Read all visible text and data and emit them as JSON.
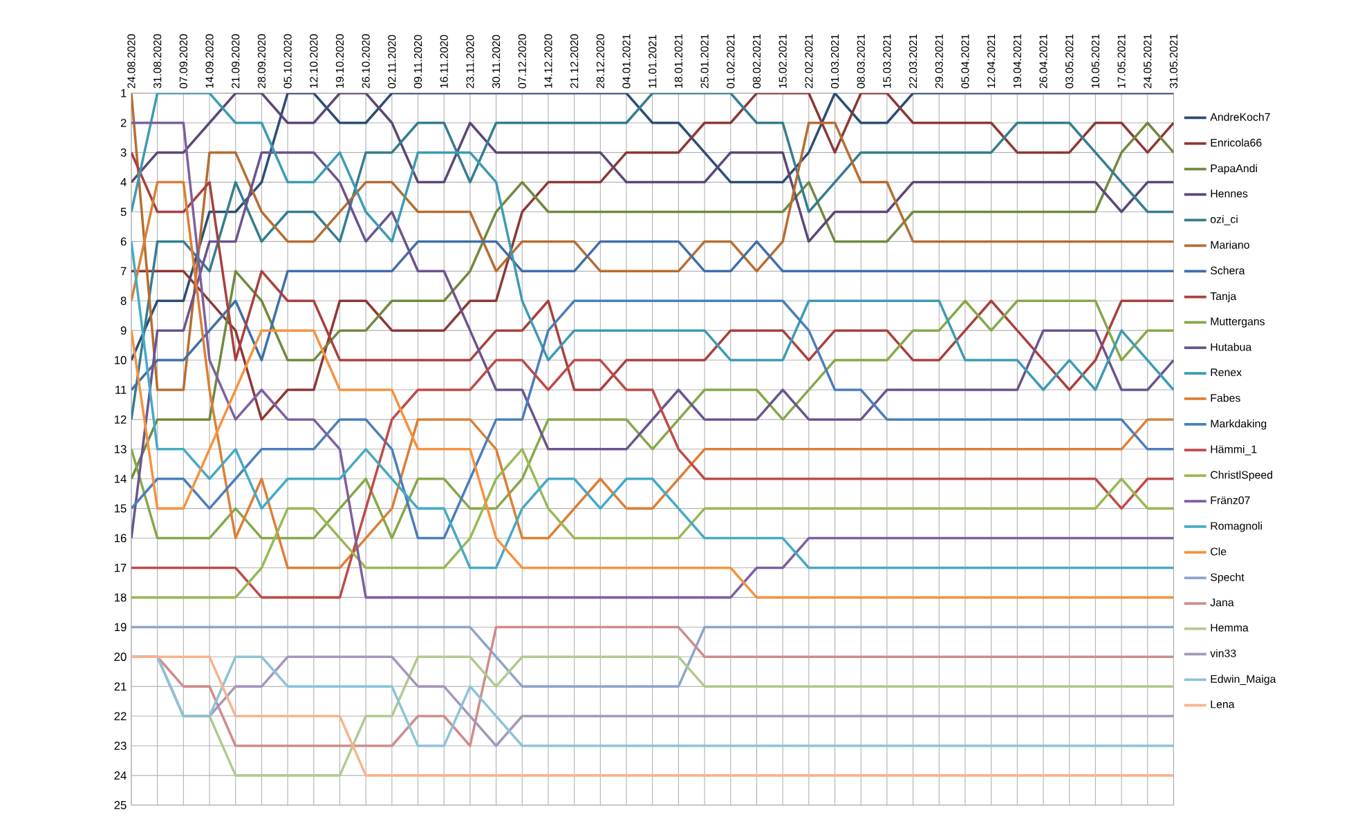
{
  "chart_data": {
    "type": "line",
    "categories": [
      "24.08.2020",
      "31.08.2020",
      "07.09.2020",
      "14.09.2020",
      "21.09.2020",
      "28.09.2020",
      "05.10.2020",
      "12.10.2020",
      "19.10.2020",
      "26.10.2020",
      "02.11.2020",
      "09.11.2020",
      "16.11.2020",
      "23.11.2020",
      "30.11.2020",
      "07.12.2020",
      "14.12.2020",
      "21.12.2020",
      "28.12.2020",
      "04.01.2021",
      "11.01.2021",
      "18.01.2021",
      "25.01.2021",
      "01.02.2021",
      "08.02.2021",
      "15.02.2021",
      "22.02.2021",
      "01.03.2021",
      "08.03.2021",
      "15.03.2021",
      "22.03.2021",
      "29.03.2021",
      "05.04.2021",
      "12.04.2021",
      "19.04.2021",
      "26.04.2021",
      "03.05.2021",
      "10.05.2021",
      "17.05.2021",
      "24.05.2021",
      "31.05.2021"
    ],
    "ylim": [
      25,
      1
    ],
    "yticks": [
      1,
      2,
      3,
      4,
      5,
      6,
      7,
      8,
      9,
      10,
      11,
      12,
      13,
      14,
      15,
      16,
      17,
      18,
      19,
      20,
      21,
      22,
      23,
      24,
      25
    ],
    "grid": true,
    "legend": "right",
    "marker": "none",
    "line_style": "solid",
    "series": [
      {
        "name": "AndreKoch7",
        "color": "#2c4d75",
        "values": [
          10,
          8,
          8,
          5,
          5,
          4,
          1,
          1,
          2,
          2,
          1,
          1,
          1,
          1,
          1,
          1,
          1,
          1,
          1,
          1,
          2,
          2,
          3,
          4,
          4,
          4,
          3,
          1,
          2,
          2,
          1,
          1,
          1,
          1,
          1,
          1,
          1,
          1,
          1,
          1,
          1
        ]
      },
      {
        "name": "Enricola66",
        "color": "#8c3836",
        "values": [
          7,
          7,
          7,
          8,
          9,
          12,
          11,
          11,
          8,
          8,
          9,
          9,
          9,
          8,
          8,
          5,
          4,
          4,
          4,
          3,
          3,
          3,
          2,
          2,
          1,
          1,
          1,
          3,
          1,
          1,
          2,
          2,
          2,
          2,
          3,
          3,
          3,
          2,
          2,
          3,
          2
        ]
      },
      {
        "name": "PapaAndi",
        "color": "#71893f",
        "values": [
          14,
          12,
          12,
          12,
          7,
          8,
          10,
          10,
          9,
          9,
          8,
          8,
          8,
          7,
          5,
          4,
          5,
          5,
          5,
          5,
          5,
          5,
          5,
          5,
          5,
          5,
          4,
          6,
          6,
          6,
          5,
          5,
          5,
          5,
          5,
          5,
          5,
          5,
          3,
          2,
          3
        ]
      },
      {
        "name": "Hennes",
        "color": "#5c4776",
        "values": [
          4,
          3,
          3,
          2,
          1,
          1,
          2,
          2,
          1,
          1,
          2,
          4,
          4,
          2,
          3,
          3,
          3,
          3,
          3,
          4,
          4,
          4,
          4,
          3,
          3,
          3,
          6,
          5,
          5,
          5,
          4,
          4,
          4,
          4,
          4,
          4,
          4,
          4,
          5,
          4,
          4
        ]
      },
      {
        "name": "ozi_ci",
        "color": "#357d91",
        "values": [
          12,
          6,
          6,
          7,
          4,
          6,
          5,
          5,
          6,
          3,
          3,
          2,
          2,
          4,
          2,
          2,
          2,
          2,
          2,
          2,
          1,
          1,
          1,
          1,
          2,
          2,
          5,
          4,
          3,
          3,
          3,
          3,
          3,
          3,
          2,
          2,
          2,
          3,
          4,
          5,
          5
        ]
      },
      {
        "name": "Mariano",
        "color": "#b66d31",
        "values": [
          1,
          11,
          11,
          3,
          3,
          5,
          6,
          6,
          5,
          4,
          4,
          5,
          5,
          5,
          7,
          6,
          6,
          6,
          7,
          7,
          7,
          7,
          6,
          6,
          7,
          6,
          2,
          2,
          4,
          4,
          6,
          6,
          6,
          6,
          6,
          6,
          6,
          6,
          6,
          6,
          6
        ]
      },
      {
        "name": "Schera",
        "color": "#3f6faa",
        "values": [
          11,
          10,
          10,
          9,
          8,
          10,
          7,
          7,
          7,
          7,
          7,
          6,
          6,
          6,
          6,
          7,
          7,
          7,
          6,
          6,
          6,
          6,
          7,
          7,
          6,
          7,
          7,
          7,
          7,
          7,
          7,
          7,
          7,
          7,
          7,
          7,
          7,
          7,
          7,
          7,
          7
        ]
      },
      {
        "name": "Tanja",
        "color": "#a9403d",
        "values": [
          3,
          5,
          5,
          4,
          10,
          7,
          8,
          8,
          10,
          10,
          10,
          10,
          10,
          10,
          9,
          9,
          8,
          11,
          11,
          10,
          10,
          10,
          10,
          9,
          9,
          9,
          10,
          9,
          9,
          9,
          10,
          10,
          9,
          8,
          9,
          10,
          11,
          10,
          8,
          8,
          8
        ]
      },
      {
        "name": "Muttergans",
        "color": "#86a84a",
        "values": [
          13,
          16,
          16,
          16,
          15,
          16,
          16,
          16,
          15,
          14,
          16,
          14,
          14,
          15,
          15,
          14,
          12,
          12,
          12,
          12,
          13,
          12,
          11,
          11,
          11,
          12,
          11,
          10,
          10,
          10,
          9,
          9,
          8,
          9,
          8,
          8,
          8,
          8,
          10,
          9,
          9
        ]
      },
      {
        "name": "Hutabua",
        "color": "#6b548d",
        "values": [
          16,
          9,
          9,
          6,
          6,
          3,
          3,
          3,
          4,
          6,
          5,
          7,
          7,
          9,
          11,
          11,
          13,
          13,
          13,
          13,
          12,
          11,
          12,
          12,
          12,
          11,
          12,
          12,
          12,
          11,
          11,
          11,
          11,
          11,
          11,
          9,
          9,
          9,
          11,
          11,
          10
        ]
      },
      {
        "name": "Renex",
        "color": "#3d9bb4",
        "values": [
          5,
          1,
          1,
          1,
          2,
          2,
          4,
          4,
          3,
          5,
          6,
          3,
          3,
          3,
          4,
          8,
          10,
          9,
          9,
          9,
          9,
          9,
          9,
          10,
          10,
          10,
          8,
          8,
          8,
          8,
          8,
          8,
          10,
          10,
          10,
          11,
          10,
          11,
          9,
          10,
          11
        ]
      },
      {
        "name": "Fabes",
        "color": "#dc7f35",
        "values": [
          8,
          4,
          4,
          11,
          16,
          14,
          17,
          17,
          17,
          16,
          15,
          12,
          12,
          12,
          13,
          16,
          16,
          15,
          14,
          15,
          15,
          14,
          13,
          13,
          13,
          13,
          13,
          13,
          13,
          13,
          13,
          13,
          13,
          13,
          13,
          13,
          13,
          13,
          13,
          12,
          12
        ]
      },
      {
        "name": "Markdaking",
        "color": "#4a7ebb",
        "values": [
          15,
          14,
          14,
          15,
          14,
          13,
          13,
          13,
          12,
          12,
          13,
          16,
          16,
          14,
          12,
          12,
          9,
          8,
          8,
          8,
          8,
          8,
          8,
          8,
          8,
          8,
          9,
          11,
          11,
          12,
          12,
          12,
          12,
          12,
          12,
          12,
          12,
          12,
          12,
          13,
          13
        ]
      },
      {
        "name": "Hämmi_1",
        "color": "#be4b48",
        "values": [
          17,
          17,
          17,
          17,
          17,
          18,
          18,
          18,
          18,
          15,
          12,
          11,
          11,
          11,
          10,
          10,
          11,
          10,
          10,
          11,
          11,
          13,
          14,
          14,
          14,
          14,
          14,
          14,
          14,
          14,
          14,
          14,
          14,
          14,
          14,
          14,
          14,
          14,
          15,
          14,
          14
        ]
      },
      {
        "name": "ChristlSpeed",
        "color": "#98b954",
        "values": [
          18,
          18,
          18,
          18,
          18,
          17,
          15,
          15,
          16,
          17,
          17,
          17,
          17,
          16,
          14,
          13,
          15,
          16,
          16,
          16,
          16,
          16,
          15,
          15,
          15,
          15,
          15,
          15,
          15,
          15,
          15,
          15,
          15,
          15,
          15,
          15,
          15,
          15,
          14,
          15,
          15
        ]
      },
      {
        "name": "Fränz07",
        "color": "#7d60a0",
        "values": [
          2,
          2,
          2,
          10,
          12,
          11,
          12,
          12,
          13,
          18,
          18,
          18,
          18,
          18,
          18,
          18,
          18,
          18,
          18,
          18,
          18,
          18,
          18,
          18,
          17,
          17,
          16,
          16,
          16,
          16,
          16,
          16,
          16,
          16,
          16,
          16,
          16,
          16,
          16,
          16,
          16
        ]
      },
      {
        "name": "Romagnoli",
        "color": "#46aac5",
        "values": [
          6,
          13,
          13,
          14,
          13,
          15,
          14,
          14,
          14,
          13,
          14,
          15,
          15,
          17,
          17,
          15,
          14,
          14,
          15,
          14,
          14,
          15,
          16,
          16,
          16,
          16,
          17,
          17,
          17,
          17,
          17,
          17,
          17,
          17,
          17,
          17,
          17,
          17,
          17,
          17,
          17
        ]
      },
      {
        "name": "Cle",
        "color": "#f69240",
        "values": [
          9,
          15,
          15,
          13,
          11,
          9,
          9,
          9,
          11,
          11,
          11,
          13,
          13,
          13,
          16,
          17,
          17,
          17,
          17,
          17,
          17,
          17,
          17,
          17,
          18,
          18,
          18,
          18,
          18,
          18,
          18,
          18,
          18,
          18,
          18,
          18,
          18,
          18,
          18,
          18,
          18
        ]
      },
      {
        "name": "Specht",
        "color": "#8ea5cb",
        "values": [
          19,
          19,
          19,
          19,
          19,
          19,
          19,
          19,
          19,
          19,
          19,
          19,
          19,
          19,
          20,
          21,
          21,
          21,
          21,
          21,
          21,
          21,
          19,
          19,
          19,
          19,
          19,
          19,
          19,
          19,
          19,
          19,
          19,
          19,
          19,
          19,
          19,
          19,
          19,
          19,
          19
        ]
      },
      {
        "name": "Jana",
        "color": "#cf8c8b",
        "values": [
          20,
          20,
          21,
          21,
          23,
          23,
          23,
          23,
          23,
          23,
          23,
          22,
          22,
          23,
          19,
          19,
          19,
          19,
          19,
          19,
          19,
          19,
          20,
          20,
          20,
          20,
          20,
          20,
          20,
          20,
          20,
          20,
          20,
          20,
          20,
          20,
          20,
          20,
          20,
          20,
          20
        ]
      },
      {
        "name": "Hemma",
        "color": "#b1ca8f",
        "values": [
          20,
          20,
          22,
          22,
          24,
          24,
          24,
          24,
          24,
          22,
          22,
          20,
          20,
          20,
          21,
          20,
          20,
          20,
          20,
          20,
          20,
          20,
          21,
          21,
          21,
          21,
          21,
          21,
          21,
          21,
          21,
          21,
          21,
          21,
          21,
          21,
          21,
          21,
          21,
          21,
          21
        ]
      },
      {
        "name": "vin33",
        "color": "#a597bc",
        "values": [
          20,
          20,
          22,
          22,
          21,
          21,
          20,
          20,
          20,
          20,
          20,
          21,
          21,
          22,
          23,
          22,
          22,
          22,
          22,
          22,
          22,
          22,
          22,
          22,
          22,
          22,
          22,
          22,
          22,
          22,
          22,
          22,
          22,
          22,
          22,
          22,
          22,
          22,
          22,
          22,
          22
        ]
      },
      {
        "name": "Edwin_Maiga",
        "color": "#8dc3d6",
        "values": [
          20,
          20,
          22,
          22,
          20,
          20,
          21,
          21,
          21,
          21,
          21,
          23,
          23,
          21,
          22,
          23,
          23,
          23,
          23,
          23,
          23,
          23,
          23,
          23,
          23,
          23,
          23,
          23,
          23,
          23,
          23,
          23,
          23,
          23,
          23,
          23,
          23,
          23,
          23,
          23,
          23
        ]
      },
      {
        "name": "Lena",
        "color": "#f8b38c",
        "values": [
          20,
          20,
          20,
          20,
          22,
          22,
          22,
          22,
          22,
          24,
          24,
          24,
          24,
          24,
          24,
          24,
          24,
          24,
          24,
          24,
          24,
          24,
          24,
          24,
          24,
          24,
          24,
          24,
          24,
          24,
          24,
          24,
          24,
          24,
          24,
          24,
          24,
          24,
          24,
          24,
          24
        ]
      }
    ]
  }
}
